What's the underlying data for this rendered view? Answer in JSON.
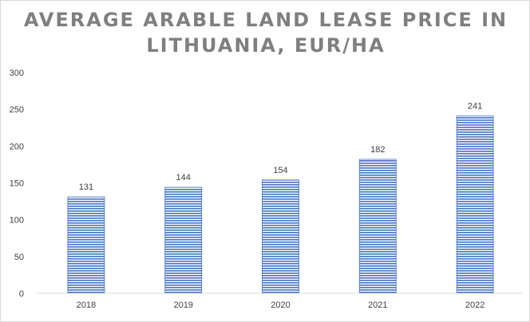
{
  "chart_data": {
    "type": "bar",
    "title_lines": [
      "AVERAGE ARABLE LAND LEASE PRICE IN",
      "LITHUANIA, EUR/HA"
    ],
    "categories": [
      "2018",
      "2019",
      "2020",
      "2021",
      "2022"
    ],
    "values": [
      131,
      144,
      154,
      182,
      241
    ],
    "data_labels": [
      "131",
      "144",
      "154",
      "182",
      "241"
    ],
    "y_ticks": [
      0,
      50,
      100,
      150,
      200,
      250,
      300
    ],
    "ylim": [
      0,
      300
    ],
    "xlabel": "",
    "ylabel": "",
    "grid": false,
    "bar_color": "#4472c4",
    "bar_fill": "horizontal-stripes"
  }
}
